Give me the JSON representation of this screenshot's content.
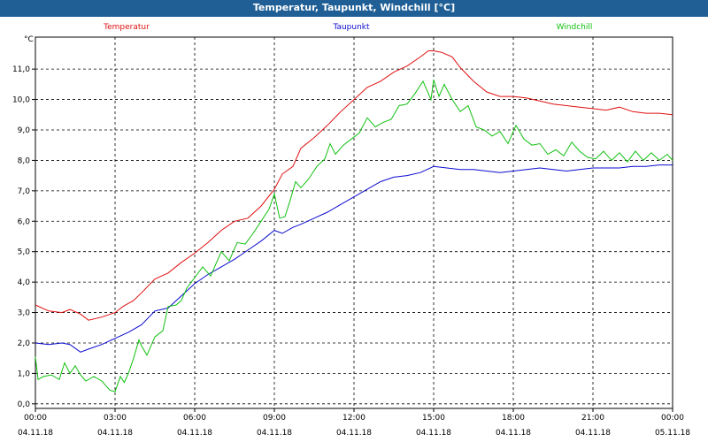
{
  "window": {
    "title": "Temperatur, Taupunkt, Windchill [°C]"
  },
  "chart_data": {
    "type": "line",
    "title": "Temperatur, Taupunkt, Windchill [°C]",
    "ylabel": "°C",
    "xlabel": "",
    "ylim": [
      0.0,
      12.0
    ],
    "xlim_hours": [
      0,
      24
    ],
    "yticks": [
      0.0,
      1.0,
      2.0,
      3.0,
      4.0,
      5.0,
      6.0,
      7.0,
      8.0,
      9.0,
      10.0,
      11.0
    ],
    "ytick_labels": [
      "0,0",
      "1,0",
      "2,0",
      "3,0",
      "4,0",
      "5,0",
      "6,0",
      "7,0",
      "8,0",
      "9,0",
      "10,0",
      "11,0"
    ],
    "xticks": [
      {
        "hour": 0,
        "time": "00:00",
        "date": "04.11.18"
      },
      {
        "hour": 3,
        "time": "03:00",
        "date": "04.11.18"
      },
      {
        "hour": 6,
        "time": "06:00",
        "date": "04.11.18"
      },
      {
        "hour": 9,
        "time": "09:00",
        "date": "04.11.18"
      },
      {
        "hour": 12,
        "time": "12:00",
        "date": "04.11.18"
      },
      {
        "hour": 15,
        "time": "15:00",
        "date": "04.11.18"
      },
      {
        "hour": 18,
        "time": "18:00",
        "date": "04.11.18"
      },
      {
        "hour": 21,
        "time": "21:00",
        "date": "04.11.18"
      },
      {
        "hour": 24,
        "time": "00:00",
        "date": "05.11.18"
      }
    ],
    "grid": true,
    "series": [
      {
        "name": "Temperatur",
        "color": "#e01010",
        "x": [
          0,
          0.5,
          1.0,
          1.3,
          1.7,
          2.0,
          2.5,
          3.0,
          3.3,
          3.7,
          4.0,
          4.5,
          5.0,
          5.5,
          6.0,
          6.5,
          7.0,
          7.5,
          8.0,
          8.5,
          9.0,
          9.3,
          9.7,
          10.0,
          10.5,
          11.0,
          11.5,
          12.0,
          12.5,
          13.0,
          13.5,
          14.0,
          14.5,
          14.8,
          15.0,
          15.3,
          15.7,
          16.0,
          16.5,
          17.0,
          17.5,
          18.0,
          18.5,
          19.0,
          19.5,
          20.0,
          20.5,
          21.0,
          21.5,
          22.0,
          22.5,
          23.0,
          23.5,
          24.0
        ],
        "y": [
          3.25,
          3.05,
          3.0,
          3.1,
          2.95,
          2.75,
          2.85,
          3.0,
          3.2,
          3.4,
          3.65,
          4.1,
          4.3,
          4.65,
          4.95,
          5.3,
          5.7,
          6.0,
          6.1,
          6.5,
          7.05,
          7.55,
          7.8,
          8.4,
          8.75,
          9.15,
          9.6,
          10.0,
          10.4,
          10.6,
          10.9,
          11.1,
          11.4,
          11.6,
          11.6,
          11.55,
          11.4,
          11.05,
          10.6,
          10.25,
          10.1,
          10.1,
          10.05,
          9.95,
          9.85,
          9.8,
          9.75,
          9.7,
          9.65,
          9.75,
          9.6,
          9.55,
          9.55,
          9.5
        ]
      },
      {
        "name": "Taupunkt",
        "color": "#0a0ad0",
        "x": [
          0,
          0.5,
          1.0,
          1.3,
          1.7,
          2.0,
          2.5,
          3.0,
          3.5,
          4.0,
          4.5,
          5.0,
          5.5,
          6.0,
          6.5,
          7.0,
          7.5,
          8.0,
          8.5,
          9.0,
          9.3,
          9.7,
          10.0,
          10.5,
          11.0,
          11.5,
          12.0,
          12.5,
          13.0,
          13.5,
          14.0,
          14.5,
          15.0,
          15.5,
          16.0,
          16.5,
          17.0,
          17.5,
          18.0,
          18.5,
          19.0,
          19.5,
          20.0,
          20.5,
          21.0,
          21.5,
          22.0,
          22.5,
          23.0,
          23.5,
          24.0
        ],
        "y": [
          2.0,
          1.95,
          2.0,
          1.95,
          1.7,
          1.8,
          1.95,
          2.15,
          2.35,
          2.6,
          3.05,
          3.15,
          3.55,
          3.95,
          4.25,
          4.5,
          4.75,
          5.05,
          5.35,
          5.7,
          5.6,
          5.8,
          5.9,
          6.1,
          6.3,
          6.55,
          6.8,
          7.05,
          7.3,
          7.45,
          7.5,
          7.6,
          7.8,
          7.75,
          7.7,
          7.7,
          7.65,
          7.6,
          7.65,
          7.7,
          7.75,
          7.7,
          7.65,
          7.7,
          7.75,
          7.75,
          7.75,
          7.8,
          7.8,
          7.85,
          7.85
        ]
      },
      {
        "name": "Windchill",
        "color": "#10c010",
        "x": [
          0,
          0.1,
          0.3,
          0.6,
          0.9,
          1.1,
          1.3,
          1.5,
          1.7,
          1.9,
          2.2,
          2.5,
          2.8,
          3.0,
          3.2,
          3.35,
          3.5,
          3.7,
          3.9,
          4.0,
          4.2,
          4.5,
          4.8,
          5.0,
          5.3,
          5.5,
          5.7,
          6.0,
          6.3,
          6.6,
          7.0,
          7.3,
          7.6,
          7.9,
          8.2,
          8.5,
          8.8,
          9.0,
          9.2,
          9.4,
          9.6,
          9.8,
          10.0,
          10.3,
          10.6,
          10.9,
          11.1,
          11.3,
          11.6,
          11.9,
          12.2,
          12.5,
          12.8,
          13.1,
          13.4,
          13.7,
          14.0,
          14.3,
          14.6,
          14.9,
          15.0,
          15.2,
          15.4,
          15.7,
          16.0,
          16.3,
          16.6,
          16.9,
          17.2,
          17.5,
          17.8,
          18.1,
          18.4,
          18.7,
          19.0,
          19.3,
          19.6,
          19.9,
          20.2,
          20.5,
          20.8,
          21.1,
          21.4,
          21.7,
          22.0,
          22.3,
          22.6,
          22.9,
          23.2,
          23.5,
          23.8,
          24.0
        ],
        "y": [
          1.55,
          0.8,
          0.9,
          0.95,
          0.8,
          1.35,
          1.0,
          1.25,
          0.95,
          0.75,
          0.9,
          0.75,
          0.45,
          0.4,
          0.9,
          0.7,
          1.0,
          1.5,
          2.1,
          1.9,
          1.6,
          2.2,
          2.4,
          3.2,
          3.25,
          3.4,
          3.8,
          4.15,
          4.5,
          4.2,
          5.0,
          4.7,
          5.3,
          5.25,
          5.6,
          6.0,
          6.4,
          6.9,
          6.1,
          6.15,
          6.7,
          7.3,
          7.1,
          7.4,
          7.8,
          8.05,
          8.55,
          8.2,
          8.5,
          8.7,
          8.9,
          9.4,
          9.1,
          9.25,
          9.35,
          9.8,
          9.85,
          10.2,
          10.6,
          10.0,
          10.65,
          10.1,
          10.5,
          10.0,
          9.6,
          9.8,
          9.1,
          9.0,
          8.8,
          8.95,
          8.55,
          9.15,
          8.7,
          8.5,
          8.55,
          8.2,
          8.35,
          8.15,
          8.6,
          8.3,
          8.1,
          8.05,
          8.3,
          8.0,
          8.25,
          7.95,
          8.3,
          8.0,
          8.25,
          8.0,
          8.2,
          8.0
        ]
      }
    ]
  }
}
